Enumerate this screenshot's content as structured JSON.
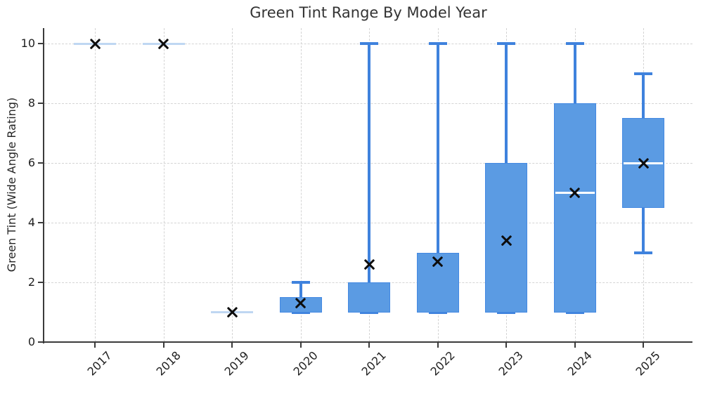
{
  "chart_data": {
    "type": "boxplot",
    "title": "Green Tint Range By Model Year",
    "xlabel": "",
    "ylabel": "Green Tint (Wide Angle Rating)",
    "categories": [
      "2017",
      "2018",
      "2019",
      "2020",
      "2021",
      "2022",
      "2023",
      "2024",
      "2025"
    ],
    "yticks": [
      0,
      2,
      4,
      6,
      8,
      10
    ],
    "ylim": [
      0,
      10.5
    ],
    "grid": true,
    "grid_style": "dashed",
    "legend": "none",
    "x_tick_rotation_deg": 45,
    "series": [
      {
        "category": "2017",
        "whislo": 10,
        "q1": 10,
        "med": 10,
        "q3": 10,
        "whishi": 10,
        "mean": 10
      },
      {
        "category": "2018",
        "whislo": 10,
        "q1": 10,
        "med": 10,
        "q3": 10,
        "whishi": 10,
        "mean": 10
      },
      {
        "category": "2019",
        "whislo": 1,
        "q1": 1,
        "med": 1,
        "q3": 1,
        "whishi": 1,
        "mean": 1
      },
      {
        "category": "2020",
        "whislo": 1,
        "q1": 1,
        "med": 1,
        "q3": 1.5,
        "whishi": 2,
        "mean": 1.3
      },
      {
        "category": "2021",
        "whislo": 1,
        "q1": 1,
        "med": 1,
        "q3": 2,
        "whishi": 10,
        "mean": 2.6
      },
      {
        "category": "2022",
        "whislo": 1,
        "q1": 1,
        "med": 1,
        "q3": 3,
        "whishi": 10,
        "mean": 2.7
      },
      {
        "category": "2023",
        "whislo": 1,
        "q1": 1,
        "med": 1,
        "q3": 6,
        "whishi": 10,
        "mean": 3.4
      },
      {
        "category": "2024",
        "whislo": 1,
        "q1": 1,
        "med": 5,
        "q3": 8,
        "whishi": 10,
        "mean": 5
      },
      {
        "category": "2025",
        "whislo": 3,
        "q1": 4.5,
        "med": 6,
        "q3": 7.5,
        "whishi": 9,
        "mean": 6
      }
    ],
    "colors": {
      "box_fill": "#5B9BE3",
      "box_edge": "#4489E2",
      "whisker": "#3F82DD",
      "median": "#FFFFFF",
      "degenerate_line": "#BFD7F2",
      "mean_marker": "#0d0d0d",
      "grid": "#d4d4d4",
      "spine": "#3b3b3b",
      "tick_text": "#1f1f1f",
      "title_text": "#333333"
    }
  }
}
